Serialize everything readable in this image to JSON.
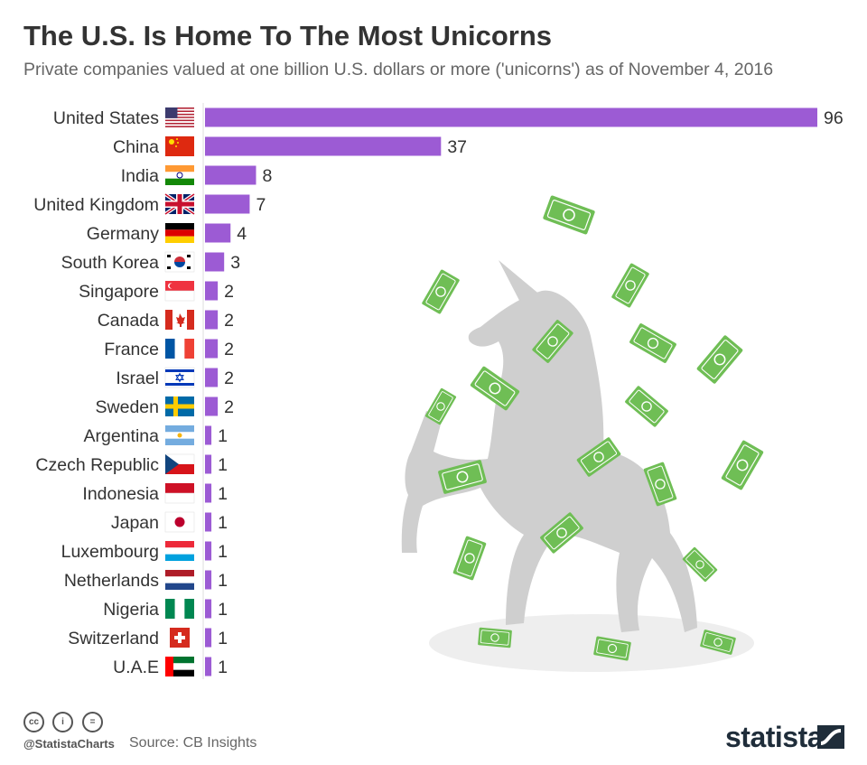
{
  "header": {
    "title": "The U.S. Is Home To The Most Unicorns",
    "subtitle": "Private companies valued at one billion U.S. dollars or more ('unicorns') as of November 4, 2016"
  },
  "footer": {
    "handle": "@StatistaCharts",
    "source": "Source: CB Insights",
    "brand": "statista",
    "license_icons": [
      "cc-icon",
      "attribution-icon",
      "no-derivatives-icon"
    ]
  },
  "colors": {
    "bar": "#9c5bd4",
    "text": "#333333",
    "silhouette": "#cfcfcf",
    "money": "#6fbe55"
  },
  "chart_data": {
    "type": "bar",
    "orientation": "horizontal",
    "categories": [
      "United States",
      "China",
      "India",
      "United Kingdom",
      "Germany",
      "South Korea",
      "Singapore",
      "Canada",
      "France",
      "Israel",
      "Sweden",
      "Argentina",
      "Czech Republic",
      "Indonesia",
      "Japan",
      "Luxembourg",
      "Netherlands",
      "Nigeria",
      "Switzerland",
      "U.A.E"
    ],
    "values": [
      96,
      37,
      8,
      7,
      4,
      3,
      2,
      2,
      2,
      2,
      2,
      1,
      1,
      1,
      1,
      1,
      1,
      1,
      1,
      1
    ],
    "flags": [
      "us-flag-icon",
      "china-flag-icon",
      "india-flag-icon",
      "uk-flag-icon",
      "germany-flag-icon",
      "south-korea-flag-icon",
      "singapore-flag-icon",
      "canada-flag-icon",
      "france-flag-icon",
      "israel-flag-icon",
      "sweden-flag-icon",
      "argentina-flag-icon",
      "czech-republic-flag-icon",
      "indonesia-flag-icon",
      "japan-flag-icon",
      "luxembourg-flag-icon",
      "netherlands-flag-icon",
      "nigeria-flag-icon",
      "switzerland-flag-icon",
      "uae-flag-icon"
    ],
    "xlim": [
      0,
      96
    ],
    "grid": false,
    "legend": "none"
  }
}
